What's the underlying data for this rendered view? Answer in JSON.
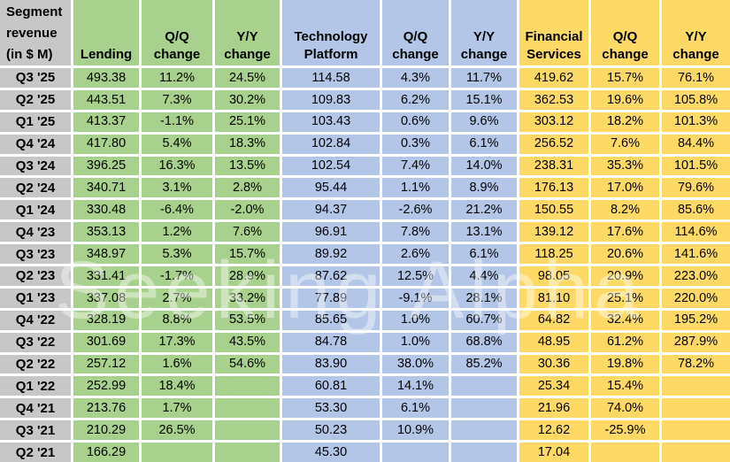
{
  "colors": {
    "green": "#A9D18E",
    "blue": "#B4C6E7",
    "yellow": "#FFD966",
    "gray": "#C7C7C7",
    "gridline": "#FFFFFF"
  },
  "watermark": {
    "text": "Seeking Alpha"
  },
  "chart_data": {
    "type": "table",
    "title": "Segment revenue (in $ M)",
    "title_lines": [
      "Segment",
      "revenue",
      "(in $ M)"
    ],
    "sections": [
      {
        "title": "Lending",
        "qq_label": "Q/Q change",
        "yy_label": "Y/Y change",
        "color_key": "green"
      },
      {
        "title": "Technology Platform",
        "qq_label": "Q/Q change",
        "yy_label": "Y/Y change",
        "color_key": "blue"
      },
      {
        "title": "Financial Services",
        "qq_label": "Q/Q change",
        "yy_label": "Y/Y change",
        "color_key": "yellow"
      }
    ],
    "rows": [
      {
        "quarter": "Q3 '25",
        "lending": [
          "493.38",
          "11.2%",
          "24.5%"
        ],
        "technology_platform": [
          "114.58",
          "4.3%",
          "11.7%"
        ],
        "financial_services": [
          "419.62",
          "15.7%",
          "76.1%"
        ]
      },
      {
        "quarter": "Q2 '25",
        "lending": [
          "443.51",
          "7.3%",
          "30.2%"
        ],
        "technology_platform": [
          "109.83",
          "6.2%",
          "15.1%"
        ],
        "financial_services": [
          "362.53",
          "19.6%",
          "105.8%"
        ]
      },
      {
        "quarter": "Q1 '25",
        "lending": [
          "413.37",
          "-1.1%",
          "25.1%"
        ],
        "technology_platform": [
          "103.43",
          "0.6%",
          "9.6%"
        ],
        "financial_services": [
          "303.12",
          "18.2%",
          "101.3%"
        ]
      },
      {
        "quarter": "Q4 '24",
        "lending": [
          "417.80",
          "5.4%",
          "18.3%"
        ],
        "technology_platform": [
          "102.84",
          "0.3%",
          "6.1%"
        ],
        "financial_services": [
          "256.52",
          "7.6%",
          "84.4%"
        ]
      },
      {
        "quarter": "Q3 '24",
        "lending": [
          "396.25",
          "16.3%",
          "13.5%"
        ],
        "technology_platform": [
          "102.54",
          "7.4%",
          "14.0%"
        ],
        "financial_services": [
          "238.31",
          "35.3%",
          "101.5%"
        ]
      },
      {
        "quarter": "Q2 '24",
        "lending": [
          "340.71",
          "3.1%",
          "2.8%"
        ],
        "technology_platform": [
          "95.44",
          "1.1%",
          "8.9%"
        ],
        "financial_services": [
          "176.13",
          "17.0%",
          "79.6%"
        ]
      },
      {
        "quarter": "Q1 '24",
        "lending": [
          "330.48",
          "-6.4%",
          "-2.0%"
        ],
        "technology_platform": [
          "94.37",
          "-2.6%",
          "21.2%"
        ],
        "financial_services": [
          "150.55",
          "8.2%",
          "85.6%"
        ]
      },
      {
        "quarter": "Q4 '23",
        "lending": [
          "353.13",
          "1.2%",
          "7.6%"
        ],
        "technology_platform": [
          "96.91",
          "7.8%",
          "13.1%"
        ],
        "financial_services": [
          "139.12",
          "17.6%",
          "114.6%"
        ]
      },
      {
        "quarter": "Q3 '23",
        "lending": [
          "348.97",
          "5.3%",
          "15.7%"
        ],
        "technology_platform": [
          "89.92",
          "2.6%",
          "6.1%"
        ],
        "financial_services": [
          "118.25",
          "20.6%",
          "141.6%"
        ]
      },
      {
        "quarter": "Q2 '23",
        "lending": [
          "331.41",
          "-1.7%",
          "28.9%"
        ],
        "technology_platform": [
          "87.62",
          "12.5%",
          "4.4%"
        ],
        "financial_services": [
          "98.05",
          "20.9%",
          "223.0%"
        ]
      },
      {
        "quarter": "Q1 '23",
        "lending": [
          "337.08",
          "2.7%",
          "33.2%"
        ],
        "technology_platform": [
          "77.89",
          "-9.1%",
          "28.1%"
        ],
        "financial_services": [
          "81.10",
          "25.1%",
          "220.0%"
        ]
      },
      {
        "quarter": "Q4 '22",
        "lending": [
          "328.19",
          "8.8%",
          "53.5%"
        ],
        "technology_platform": [
          "85.65",
          "1.0%",
          "60.7%"
        ],
        "financial_services": [
          "64.82",
          "32.4%",
          "195.2%"
        ]
      },
      {
        "quarter": "Q3 '22",
        "lending": [
          "301.69",
          "17.3%",
          "43.5%"
        ],
        "technology_platform": [
          "84.78",
          "1.0%",
          "68.8%"
        ],
        "financial_services": [
          "48.95",
          "61.2%",
          "287.9%"
        ]
      },
      {
        "quarter": "Q2 '22",
        "lending": [
          "257.12",
          "1.6%",
          "54.6%"
        ],
        "technology_platform": [
          "83.90",
          "38.0%",
          "85.2%"
        ],
        "financial_services": [
          "30.36",
          "19.8%",
          "78.2%"
        ]
      },
      {
        "quarter": "Q1 '22",
        "lending": [
          "252.99",
          "18.4%",
          ""
        ],
        "technology_platform": [
          "60.81",
          "14.1%",
          ""
        ],
        "financial_services": [
          "25.34",
          "15.4%",
          ""
        ]
      },
      {
        "quarter": "Q4 '21",
        "lending": [
          "213.76",
          "1.7%",
          ""
        ],
        "technology_platform": [
          "53.30",
          "6.1%",
          ""
        ],
        "financial_services": [
          "21.96",
          "74.0%",
          ""
        ]
      },
      {
        "quarter": "Q3 '21",
        "lending": [
          "210.29",
          "26.5%",
          ""
        ],
        "technology_platform": [
          "50.23",
          "10.9%",
          ""
        ],
        "financial_services": [
          "12.62",
          "-25.9%",
          ""
        ]
      },
      {
        "quarter": "Q2 '21",
        "lending": [
          "166.29",
          "",
          ""
        ],
        "technology_platform": [
          "45.30",
          "",
          ""
        ],
        "financial_services": [
          "17.04",
          "",
          ""
        ]
      }
    ]
  }
}
